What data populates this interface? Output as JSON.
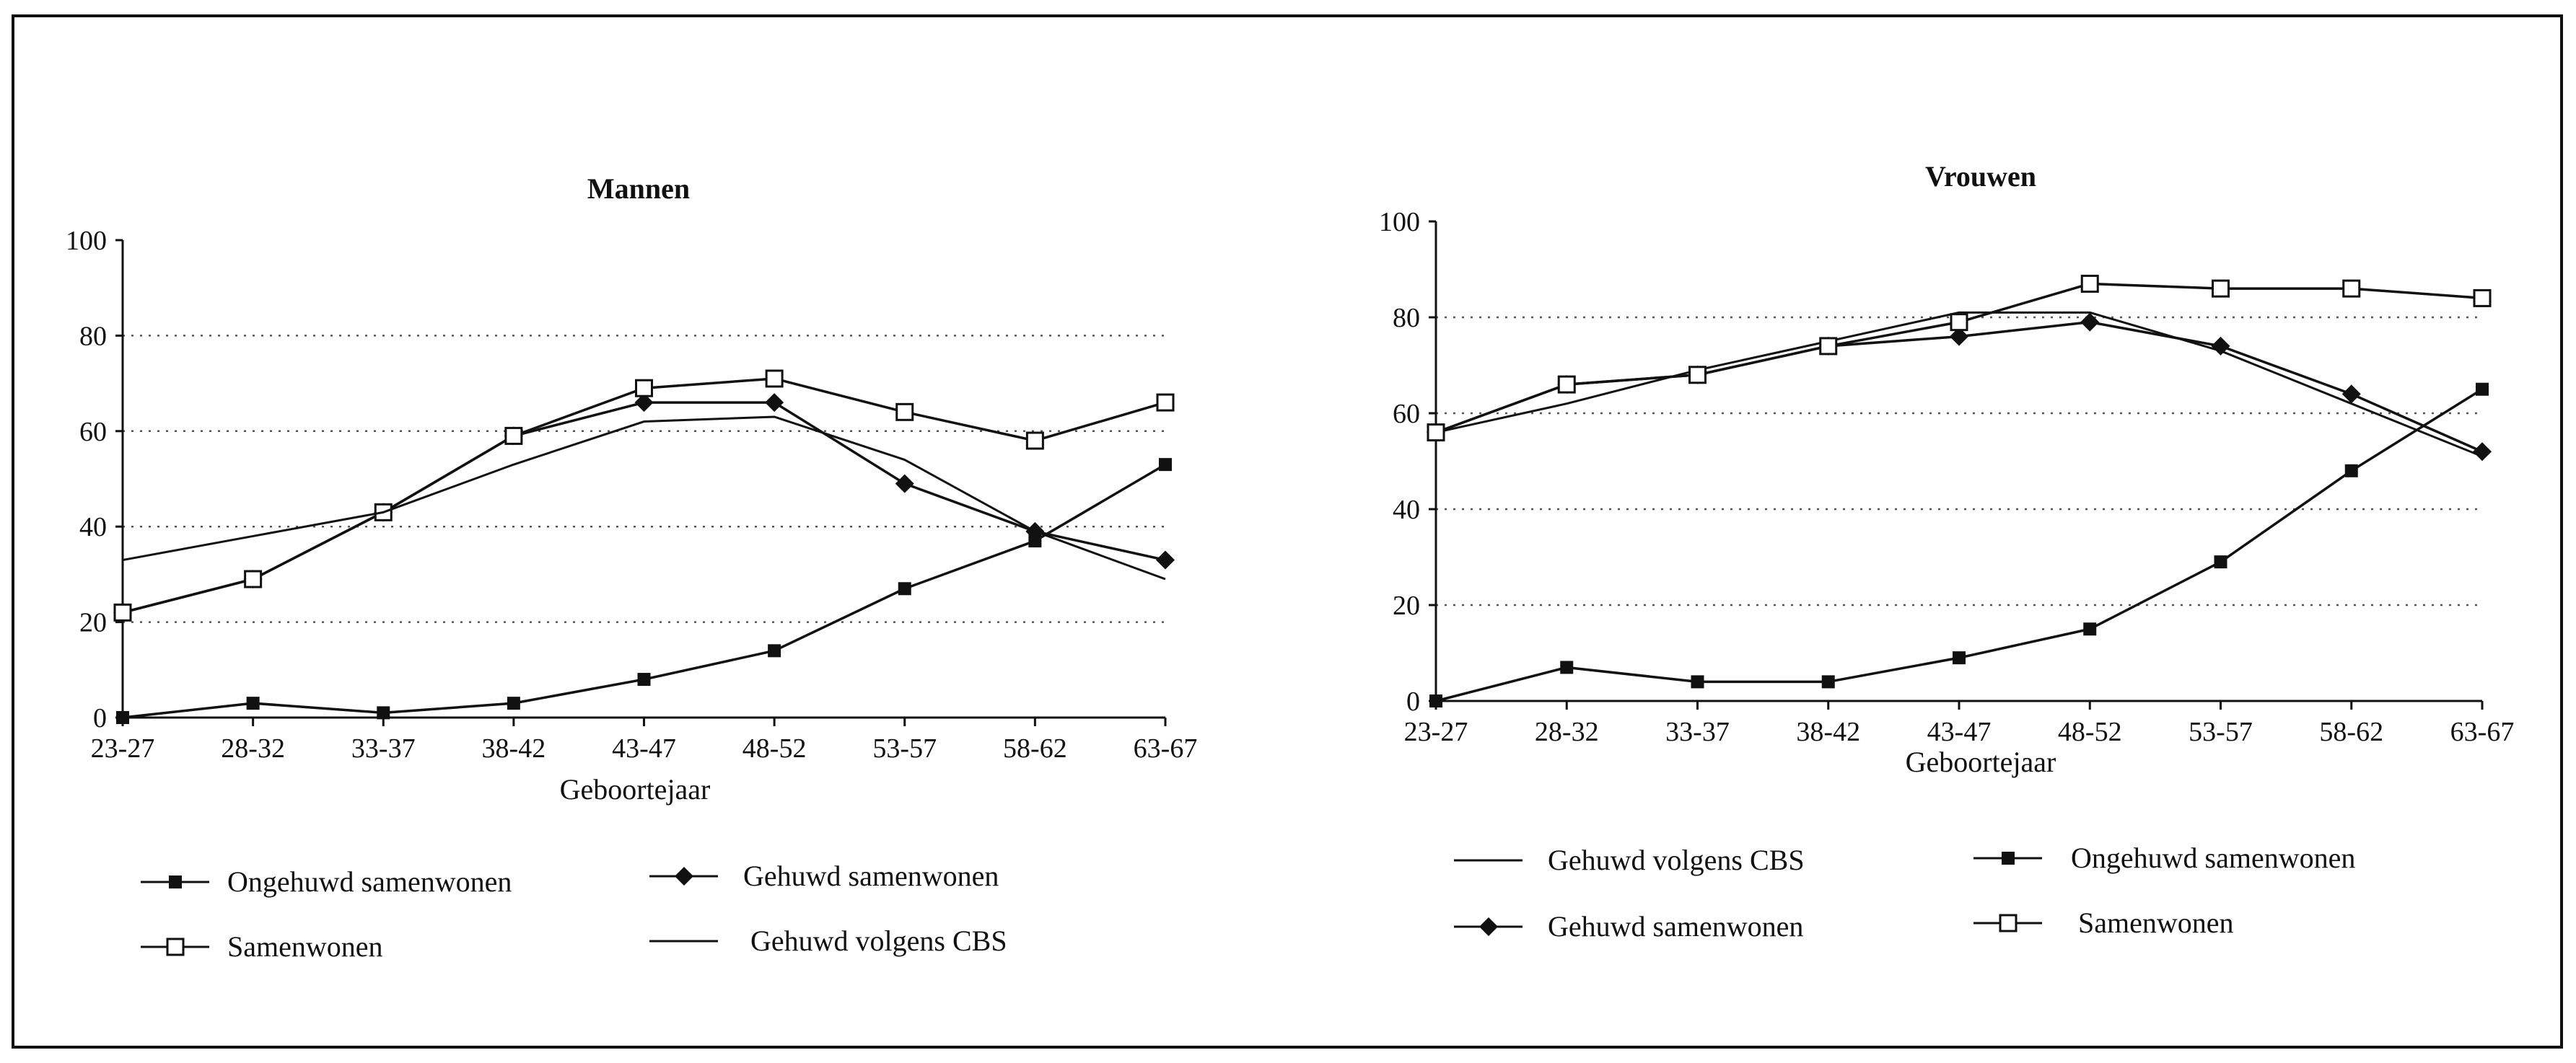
{
  "chart_data": [
    {
      "type": "line",
      "title": "Mannen",
      "xlabel": "Geboortejaar",
      "ylabel": "",
      "ylim": [
        0,
        100
      ],
      "yticks": [
        "0",
        "20",
        "40",
        "60",
        "80",
        "100"
      ],
      "categories": [
        "23-27",
        "28-32",
        "33-37",
        "38-42",
        "43-47",
        "48-52",
        "53-57",
        "58-62",
        "63-67"
      ],
      "grid": "dotted horizontal at 20, 40, 60, 80",
      "legend_placement": "bottom",
      "series": [
        {
          "name": "Ongehuwd samenwonen",
          "marker": "filled-square",
          "values": [
            0,
            3,
            1,
            3,
            8,
            14,
            27,
            37,
            53
          ]
        },
        {
          "name": "Gehuwd samenwonen",
          "marker": "filled-diamond",
          "values": [
            22,
            29,
            43,
            59,
            66,
            66,
            49,
            39,
            33
          ]
        },
        {
          "name": "Samenwonen",
          "marker": "open-square",
          "values": [
            22,
            29,
            43,
            59,
            69,
            71,
            64,
            58,
            66
          ]
        },
        {
          "name": "Gehuwd volgens CBS",
          "marker": "none",
          "values": [
            33,
            38,
            43,
            53,
            62,
            63,
            54,
            39,
            29
          ]
        }
      ]
    },
    {
      "type": "line",
      "title": "Vrouwen",
      "xlabel": "Geboortejaar",
      "ylabel": "",
      "ylim": [
        0,
        100
      ],
      "yticks": [
        "0",
        "20",
        "40",
        "60",
        "80",
        "100"
      ],
      "categories": [
        "23-27",
        "28-32",
        "33-37",
        "38-42",
        "43-47",
        "48-52",
        "53-57",
        "58-62",
        "63-67"
      ],
      "grid": "dotted horizontal at 20, 40, 60, 80",
      "legend_placement": "bottom",
      "series": [
        {
          "name": "Gehuwd volgens CBS",
          "marker": "none",
          "values": [
            56,
            62,
            69,
            75,
            81,
            81,
            73,
            62,
            51
          ]
        },
        {
          "name": "Ongehuwd samenwonen",
          "marker": "filled-square",
          "values": [
            0,
            7,
            4,
            4,
            9,
            15,
            29,
            48,
            65
          ]
        },
        {
          "name": "Gehuwd samenwonen",
          "marker": "filled-diamond",
          "values": [
            56,
            66,
            68,
            74,
            76,
            79,
            74,
            64,
            52
          ]
        },
        {
          "name": "Samenwonen",
          "marker": "open-square",
          "values": [
            56,
            66,
            68,
            74,
            79,
            87,
            86,
            86,
            84
          ]
        }
      ]
    }
  ]
}
